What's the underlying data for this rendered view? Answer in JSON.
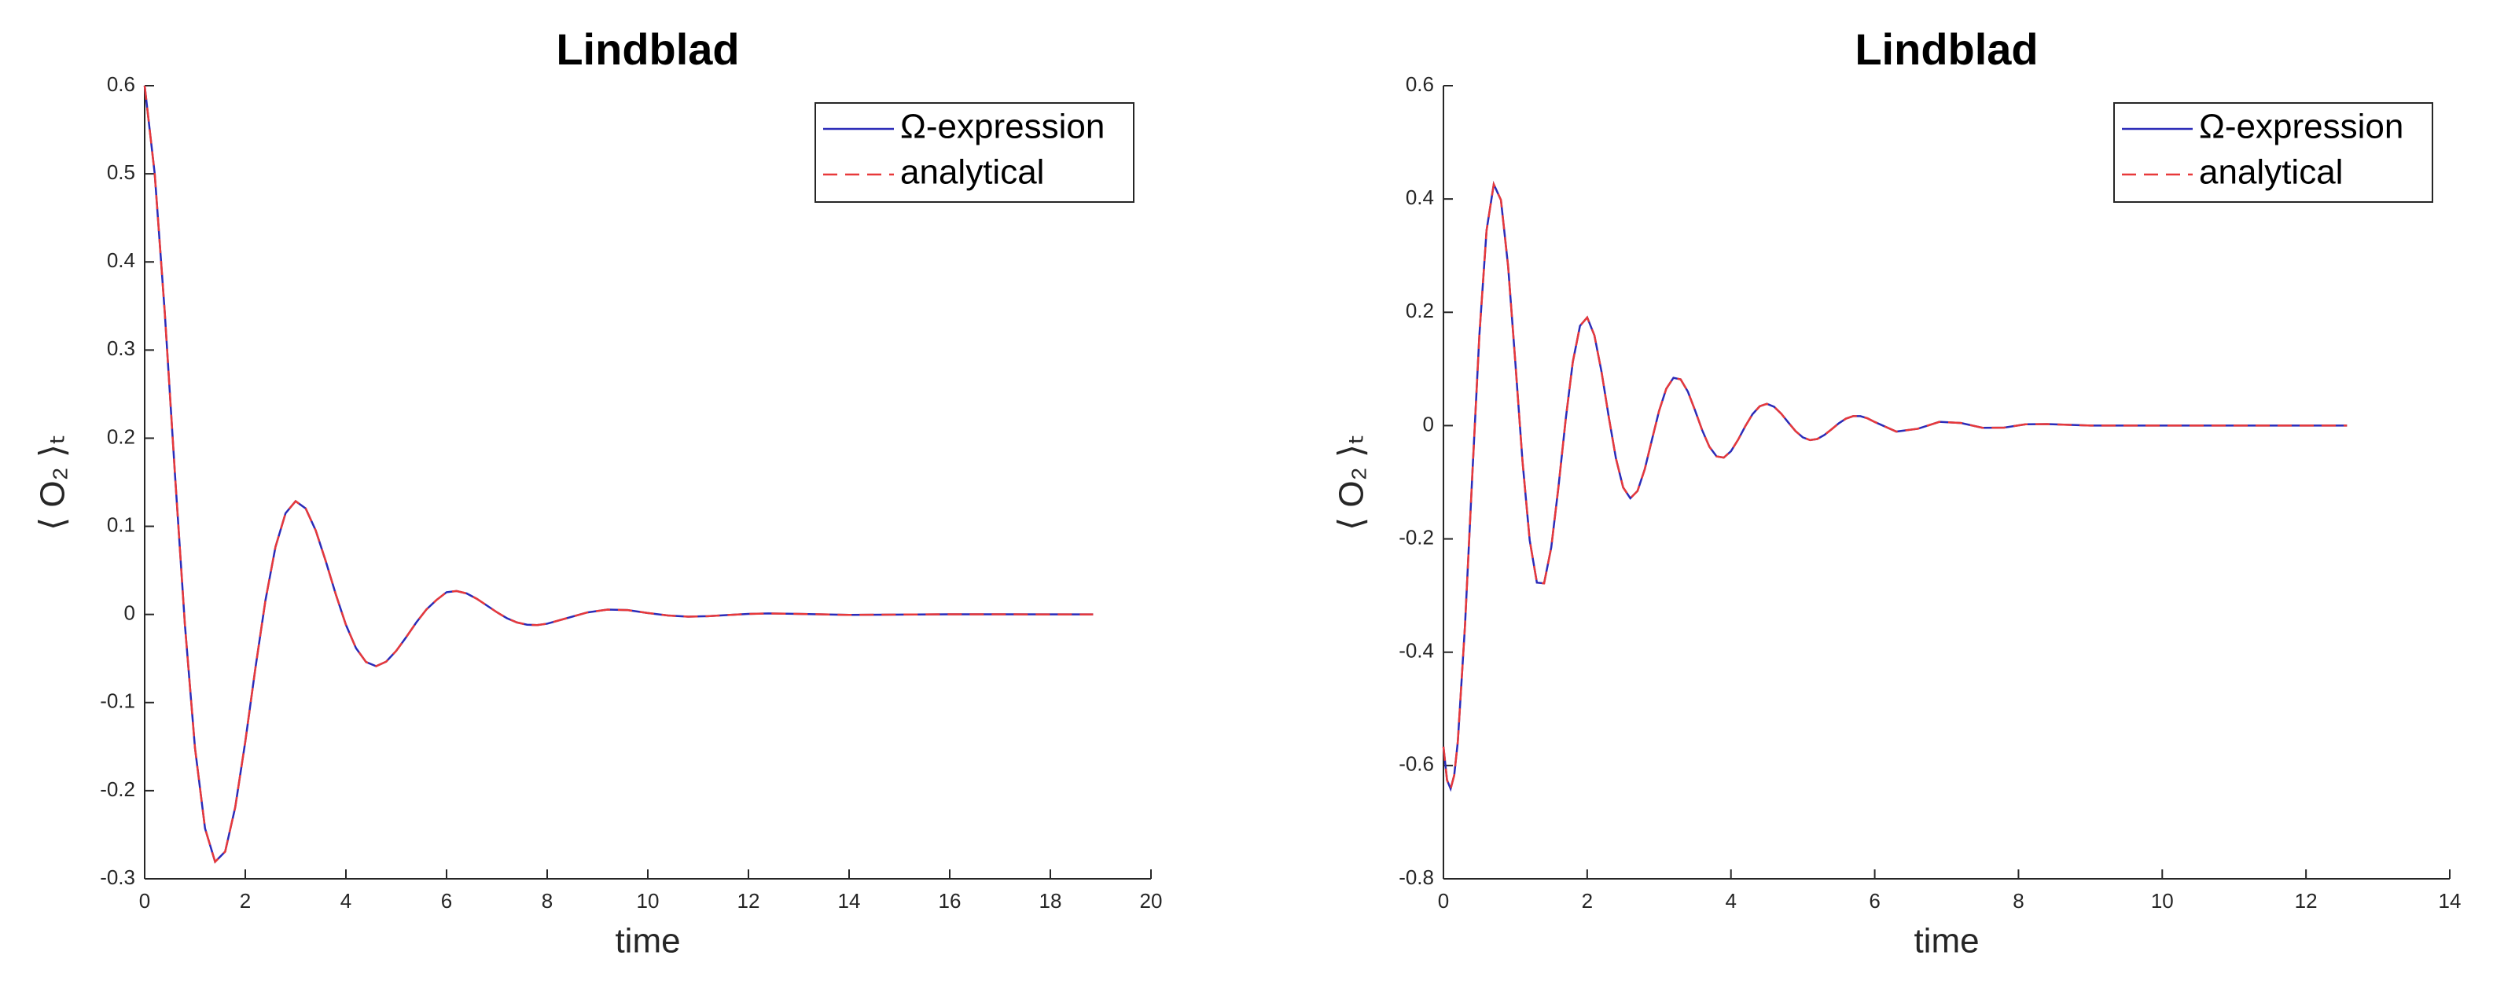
{
  "chart_data": [
    {
      "type": "line",
      "title": "Lindblad",
      "xlabel": "time",
      "ylabel": "⟨ O₂ ⟩ₜ",
      "xlim": [
        0,
        20
      ],
      "xticks": [
        0,
        2,
        4,
        6,
        8,
        10,
        12,
        14,
        16,
        18,
        20
      ],
      "ylim": [
        -0.3,
        0.6
      ],
      "yticks": [
        -0.3,
        -0.2,
        -0.1,
        0,
        0.1,
        0.2,
        0.3,
        0.4,
        0.5,
        0.6
      ],
      "legend": "northeast",
      "x": [
        0,
        0.2,
        0.4,
        0.6,
        0.8,
        1.0,
        1.2,
        1.4,
        1.6,
        1.8,
        2.0,
        2.2,
        2.4,
        2.6,
        2.8,
        3.0,
        3.2,
        3.4,
        3.6,
        3.8,
        4.0,
        4.2,
        4.4,
        4.6,
        4.8,
        5.0,
        5.2,
        5.4,
        5.6,
        5.8,
        6.0,
        6.2,
        6.4,
        6.6,
        6.8,
        7.0,
        7.2,
        7.4,
        7.6,
        7.8,
        8.0,
        8.4,
        8.8,
        9.2,
        9.6,
        10.0,
        10.4,
        10.8,
        11.2,
        11.6,
        12.0,
        12.4,
        13,
        14,
        16,
        18.85
      ],
      "series": [
        {
          "name": "Ω-expression",
          "color": "#2b2bb8",
          "linestyle": "solid",
          "values": [
            0.6,
            0.5,
            0.3423,
            0.1611,
            -0.0117,
            -0.1514,
            -0.2428,
            -0.2807,
            -0.2691,
            -0.2188,
            -0.1443,
            -0.0614,
            0.0158,
            0.0766,
            0.1148,
            0.1285,
            0.1203,
            0.0953,
            0.0603,
            0.0226,
            -0.0118,
            -0.0382,
            -0.054,
            -0.0587,
            -0.0536,
            -0.0413,
            -0.0256,
            -0.009,
            0.0056,
            0.0164,
            0.0252,
            0.0266,
            0.0238,
            0.0178,
            0.0102,
            0.0025,
            -0.0043,
            -0.0091,
            -0.0117,
            -0.0121,
            -0.0105,
            -0.0041,
            0.0023,
            0.0055,
            0.0049,
            0.0016,
            -0.0012,
            -0.0025,
            -0.002,
            -0.0006,
            0.0006,
            0.0011,
            0.0006,
            -0.0005,
            0.0002,
            0
          ]
        },
        {
          "name": "analytical",
          "color": "#e8393a",
          "linestyle": "dashed",
          "values": [
            0.6,
            0.5,
            0.3423,
            0.1611,
            -0.0117,
            -0.1514,
            -0.2428,
            -0.2807,
            -0.2691,
            -0.2188,
            -0.1443,
            -0.0614,
            0.0158,
            0.0766,
            0.1148,
            0.1285,
            0.1203,
            0.0953,
            0.0603,
            0.0226,
            -0.0118,
            -0.0382,
            -0.054,
            -0.0587,
            -0.0536,
            -0.0413,
            -0.0256,
            -0.009,
            0.0056,
            0.0164,
            0.0252,
            0.0266,
            0.0238,
            0.0178,
            0.0102,
            0.0025,
            -0.0043,
            -0.0091,
            -0.0117,
            -0.0121,
            -0.0105,
            -0.0041,
            0.0023,
            0.0055,
            0.0049,
            0.0016,
            -0.0012,
            -0.0025,
            -0.002,
            -0.0006,
            0.0006,
            0.0011,
            0.0006,
            -0.0005,
            0.0002,
            0
          ]
        }
      ]
    },
    {
      "type": "line",
      "title": "Lindblad",
      "xlabel": "time",
      "ylabel": "⟨ O₂ ⟩ₜ",
      "xlim": [
        0,
        14
      ],
      "xticks": [
        0,
        2,
        4,
        6,
        8,
        10,
        12,
        14
      ],
      "ylim": [
        -0.8,
        0.6
      ],
      "yticks": [
        -0.8,
        -0.6,
        -0.4,
        -0.2,
        0,
        0.2,
        0.4,
        0.6
      ],
      "legend": "northeast",
      "x": [
        0,
        0.05,
        0.1,
        0.15,
        0.2,
        0.3,
        0.4,
        0.5,
        0.6,
        0.7,
        0.8,
        0.9,
        1.0,
        1.1,
        1.2,
        1.3,
        1.4,
        1.5,
        1.6,
        1.7,
        1.8,
        1.9,
        2.0,
        2.1,
        2.2,
        2.3,
        2.4,
        2.5,
        2.6,
        2.7,
        2.8,
        2.9,
        3.0,
        3.1,
        3.2,
        3.3,
        3.4,
        3.5,
        3.6,
        3.7,
        3.8,
        3.9,
        4.0,
        4.1,
        4.2,
        4.3,
        4.4,
        4.5,
        4.6,
        4.7,
        4.8,
        4.9,
        5.0,
        5.1,
        5.2,
        5.3,
        5.4,
        5.5,
        5.6,
        5.7,
        5.8,
        5.9,
        6.0,
        6.3,
        6.6,
        6.9,
        7.2,
        7.5,
        7.8,
        8.1,
        8.4,
        9,
        10,
        11,
        12,
        12.57
      ],
      "series": [
        {
          "name": "Ω-expression",
          "color": "#2b2bb8",
          "linestyle": "solid",
          "values": [
            -0.5667,
            -0.6257,
            -0.6411,
            -0.6172,
            -0.5578,
            -0.3526,
            -0.0913,
            0.1596,
            0.3447,
            0.426,
            0.3982,
            0.2808,
            0.112,
            -0.063,
            -0.2022,
            -0.2772,
            -0.2785,
            -0.215,
            -0.1084,
            0.0101,
            0.1125,
            0.1761,
            0.1909,
            0.1594,
            0.0945,
            0.0153,
            -0.058,
            -0.1091,
            -0.1283,
            -0.1154,
            -0.0773,
            -0.0254,
            0.0259,
            0.0651,
            0.0844,
            0.0816,
            0.0601,
            0.0271,
            -0.0082,
            -0.0374,
            -0.0544,
            -0.0565,
            -0.0452,
            -0.0248,
            -0.001,
            0.0202,
            0.0341,
            0.0384,
            0.0332,
            0.0209,
            0.0052,
            -0.0099,
            -0.0208,
            -0.0256,
            -0.0237,
            -0.0165,
            -0.0065,
            0.004,
            0.0123,
            0.0167,
            0.0167,
            0.0128,
            0.0064,
            -0.0106,
            -0.0056,
            0.0066,
            0.0046,
            -0.0039,
            -0.0036,
            0.0023,
            0.0027,
            0,
            0,
            0,
            0,
            0
          ]
        },
        {
          "name": "analytical",
          "color": "#e8393a",
          "linestyle": "dashed",
          "values": [
            -0.5667,
            -0.6257,
            -0.6411,
            -0.6172,
            -0.5578,
            -0.3526,
            -0.0913,
            0.1596,
            0.3447,
            0.426,
            0.3982,
            0.2808,
            0.112,
            -0.063,
            -0.2022,
            -0.2772,
            -0.2785,
            -0.215,
            -0.1084,
            0.0101,
            0.1125,
            0.1761,
            0.1909,
            0.1594,
            0.0945,
            0.0153,
            -0.058,
            -0.1091,
            -0.1283,
            -0.1154,
            -0.0773,
            -0.0254,
            0.0259,
            0.0651,
            0.0844,
            0.0816,
            0.0601,
            0.0271,
            -0.0082,
            -0.0374,
            -0.0544,
            -0.0565,
            -0.0452,
            -0.0248,
            -0.001,
            0.0202,
            0.0341,
            0.0384,
            0.0332,
            0.0209,
            0.0052,
            -0.0099,
            -0.0208,
            -0.0256,
            -0.0237,
            -0.0165,
            -0.0065,
            0.004,
            0.0123,
            0.0167,
            0.0167,
            0.0128,
            0.0064,
            -0.0106,
            -0.0056,
            0.0066,
            0.0046,
            -0.0039,
            -0.0036,
            0.0023,
            0.0027,
            0,
            0,
            0,
            0,
            0
          ]
        }
      ]
    }
  ]
}
